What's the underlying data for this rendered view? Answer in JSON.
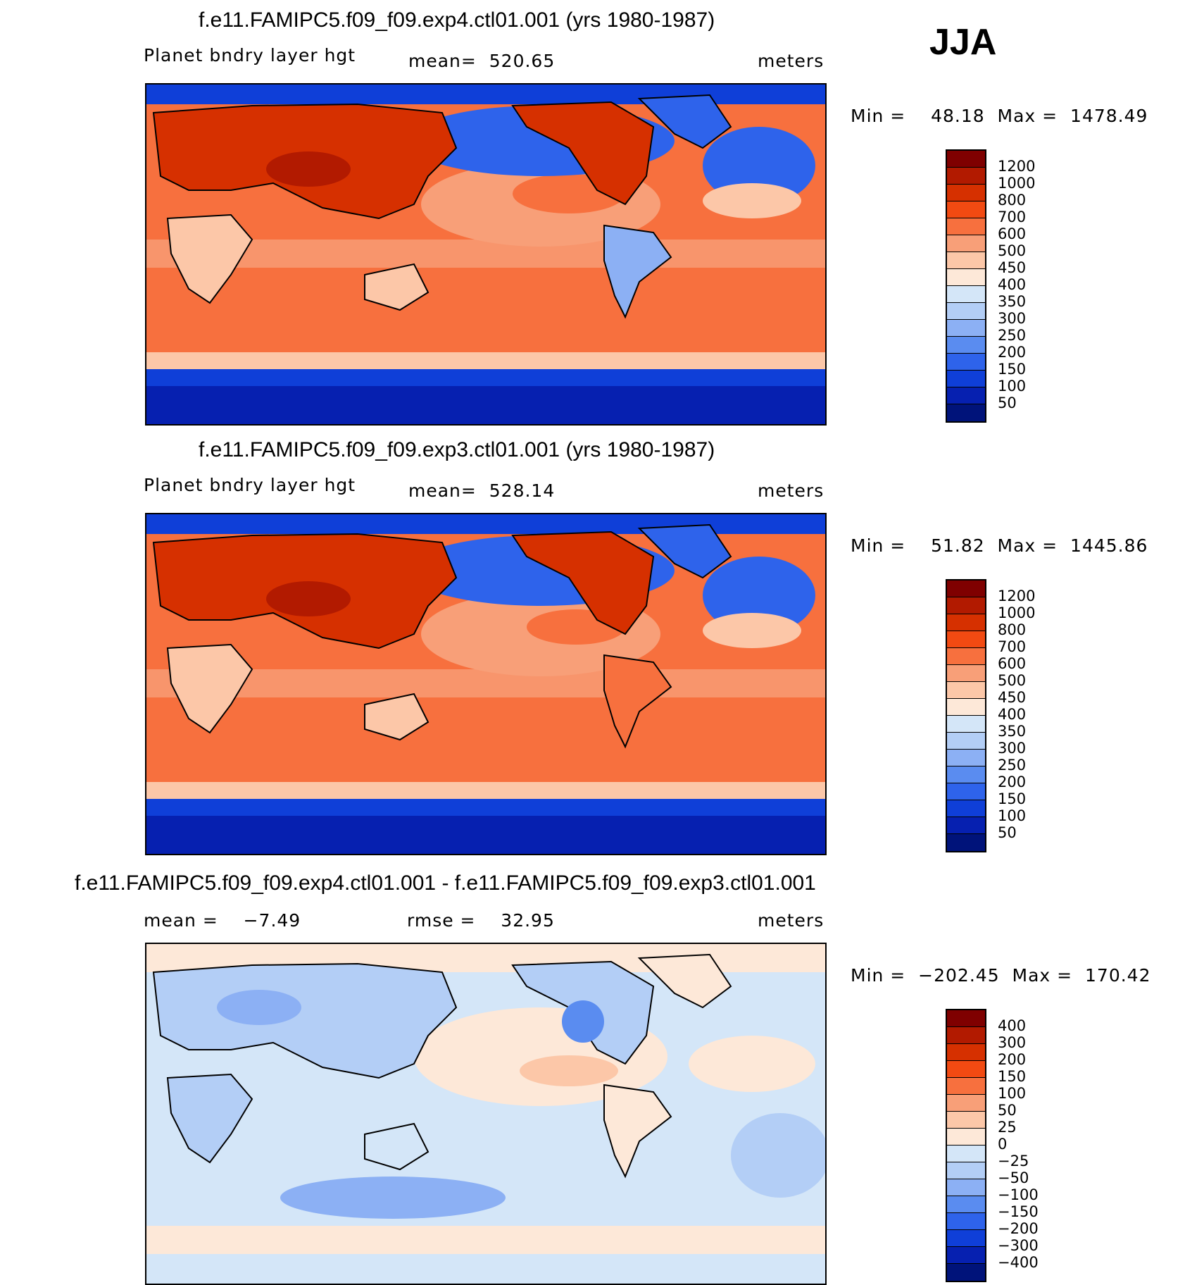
{
  "season": "JJA",
  "chart_data": [
    {
      "type": "heatmap",
      "title": "f.e11.FAMIPC5.f09_f09.exp4.ctl01.001 (yrs 1980-1987)",
      "variable": "Planet bndry layer hgt",
      "stat_label": "mean=",
      "stat_value": "520.65",
      "units": "meters",
      "min_label": "Min =",
      "min": "48.18",
      "max_label": "Max =",
      "max": "1478.49",
      "levels": [
        "1200",
        "1000",
        "800",
        "700",
        "600",
        "500",
        "450",
        "400",
        "350",
        "300",
        "250",
        "200",
        "150",
        "100",
        "50"
      ],
      "colors": [
        "#7f0000",
        "#b21a00",
        "#d63000",
        "#f24a12",
        "#f7703e",
        "#f89f78",
        "#fcc7a8",
        "#fde8d8",
        "#d4e6f8",
        "#b3cef6",
        "#8cb0f4",
        "#5a8cf0",
        "#2e63eb",
        "#0f3fd8",
        "#0620b0",
        "#00137a"
      ]
    },
    {
      "type": "heatmap",
      "title": "f.e11.FAMIPC5.f09_f09.exp3.ctl01.001 (yrs 1980-1987)",
      "variable": "Planet bndry layer hgt",
      "stat_label": "mean=",
      "stat_value": "528.14",
      "units": "meters",
      "min_label": "Min =",
      "min": "51.82",
      "max_label": "Max =",
      "max": "1445.86",
      "levels": [
        "1200",
        "1000",
        "800",
        "700",
        "600",
        "500",
        "450",
        "400",
        "350",
        "300",
        "250",
        "200",
        "150",
        "100",
        "50"
      ],
      "colors": [
        "#7f0000",
        "#b21a00",
        "#d63000",
        "#f24a12",
        "#f7703e",
        "#f89f78",
        "#fcc7a8",
        "#fde8d8",
        "#d4e6f8",
        "#b3cef6",
        "#8cb0f4",
        "#5a8cf0",
        "#2e63eb",
        "#0f3fd8",
        "#0620b0",
        "#00137a"
      ]
    },
    {
      "type": "heatmap",
      "title": "f.e11.FAMIPC5.f09_f09.exp4.ctl01.001 - f.e11.FAMIPC5.f09_f09.exp3.ctl01.001",
      "stat_label": "mean =",
      "stat_value": "−7.49",
      "rmse_label": "rmse =",
      "rmse_value": "32.95",
      "units": "meters",
      "min_label": "Min =",
      "min": "−202.45",
      "max_label": "Max =",
      "max": "170.42",
      "levels": [
        "400",
        "300",
        "200",
        "150",
        "100",
        "50",
        "25",
        "0",
        "−25",
        "−50",
        "−100",
        "−150",
        "−200",
        "−300",
        "−400"
      ],
      "colors": [
        "#7f0000",
        "#b21a00",
        "#d63000",
        "#f24a12",
        "#f7703e",
        "#f89f78",
        "#fcc7a8",
        "#fde8d8",
        "#d4e6f8",
        "#b3cef6",
        "#8cb0f4",
        "#5a8cf0",
        "#2e63eb",
        "#0f3fd8",
        "#0620b0",
        "#00137a"
      ]
    }
  ]
}
